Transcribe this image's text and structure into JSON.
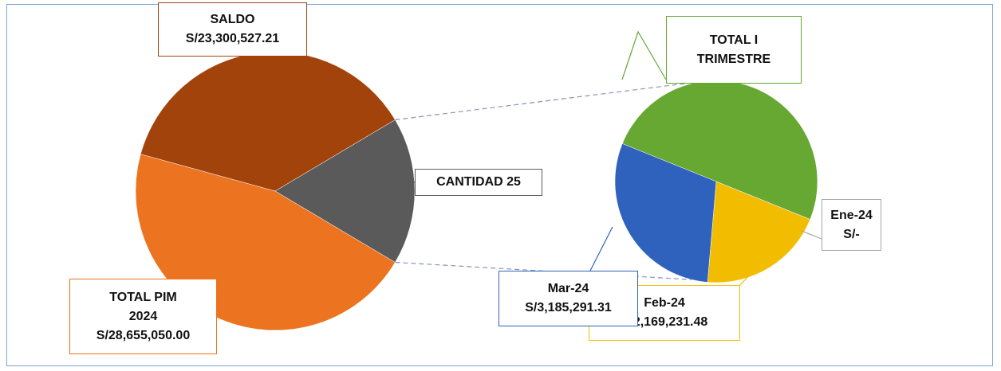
{
  "chart_data": {
    "type": "pie_of_pie",
    "primary": {
      "categories": [
        "TOTAL PIM 2024",
        "SALDO",
        "CANTIDAD 25"
      ],
      "values": [
        28655050.0,
        23300527.21,
        null
      ],
      "value_labels": [
        "S/28,655,050.00",
        "S/23,300,527.21",
        null
      ],
      "colors": [
        "#ec7320",
        "#a3430c",
        "#5a5a5a"
      ]
    },
    "secondary": {
      "categories": [
        "TOTAL I TRIMESTRE",
        "Ene-24",
        "Feb-24",
        "Mar-24"
      ],
      "values": [
        5354522.79,
        0,
        2169231.48,
        3185291.31
      ],
      "value_labels": [
        null,
        "S/-",
        "S/2,169,231.48",
        "S/3,185,291.31"
      ],
      "colors": [
        "#66a832",
        "#a5a5a5",
        "#f2bd00",
        "#2f62bd"
      ]
    }
  }
}
